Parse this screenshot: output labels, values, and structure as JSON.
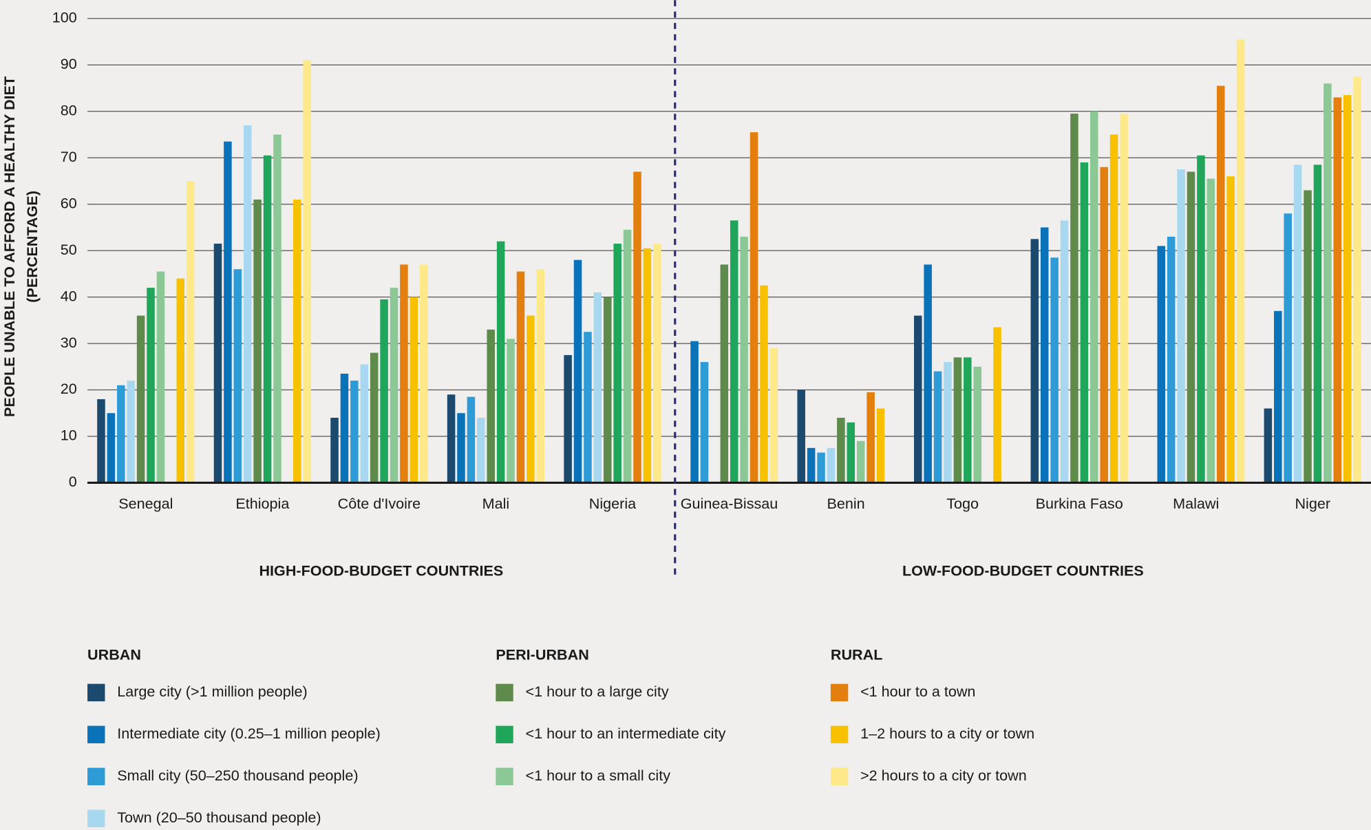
{
  "chart_data": {
    "type": "bar",
    "ylabel": [
      "PEOPLE UNABLE TO AFFORD A HEALTHY DIET",
      "(PERCENTAGE)"
    ],
    "categories": [
      "Senegal",
      "Ethiopia",
      "Côte d'Ivoire",
      "Mali",
      "Nigeria",
      "Guinea-Bissau",
      "Benin",
      "Togo",
      "Burkina Faso",
      "Malawi",
      "Niger"
    ],
    "category_groups": [
      "HIGH-FOOD-BUDGET COUNTRIES",
      "LOW-FOOD-BUDGET COUNTRIES"
    ],
    "legend_groups": [
      "URBAN",
      "PERI-URBAN",
      "RURAL"
    ],
    "ylim": [
      0,
      100
    ],
    "yticks": [
      0,
      10,
      20,
      30,
      40,
      50,
      60,
      70,
      80,
      90,
      100
    ],
    "grid": true,
    "series": [
      {
        "name": "Large city (>1 million people)",
        "color": "#1b4a6e",
        "values": [
          18,
          51.5,
          14,
          19,
          27.5,
          null,
          20,
          36,
          52.5,
          null,
          16
        ]
      },
      {
        "name": "Intermediate city (0.25–1 million people)",
        "color": "#0a72b9",
        "values": [
          15,
          73.5,
          23.5,
          15,
          48,
          30.5,
          7.5,
          47,
          55,
          51,
          37
        ]
      },
      {
        "name": "Small city (50–250 thousand people)",
        "color": "#2e9bd6",
        "values": [
          21,
          46,
          22,
          18.5,
          32.5,
          26,
          6.5,
          24,
          48.5,
          53,
          58
        ]
      },
      {
        "name": "Town (20–50 thousand people)",
        "color": "#a8d8f0",
        "values": [
          22,
          77,
          25.5,
          14,
          41,
          null,
          7.5,
          26,
          56.5,
          67.5,
          68.5
        ]
      },
      {
        "name": "<1 hour to a large city",
        "color": "#5e8a4b",
        "values": [
          36,
          61,
          28,
          33,
          40,
          47,
          14,
          27,
          79.5,
          67,
          63
        ]
      },
      {
        "name": "<1 hour to an intermediate city",
        "color": "#1fa65a",
        "values": [
          42,
          70.5,
          39.5,
          52,
          51.5,
          56.5,
          13,
          27,
          69,
          70.5,
          68.5
        ]
      },
      {
        "name": "<1 hour to a small city",
        "color": "#8cc896",
        "values": [
          45.5,
          75,
          42,
          31,
          54.5,
          53,
          9,
          25,
          80,
          65.5,
          86
        ]
      },
      {
        "name": "<1 hour to a town",
        "color": "#e37f0f",
        "values": [
          null,
          null,
          47,
          45.5,
          67,
          75.5,
          19.5,
          null,
          68,
          85.5,
          83
        ]
      },
      {
        "name": "1–2 hours to a city or town",
        "color": "#f7c100",
        "values": [
          44,
          61,
          40,
          36,
          50.5,
          42.5,
          16,
          33.5,
          75,
          66,
          83.5
        ]
      },
      {
        "name": ">2 hours to a city or town",
        "color": "#fde98a",
        "values": [
          65,
          91,
          47,
          46,
          51.5,
          29,
          null,
          null,
          79.5,
          95.5,
          87.5
        ]
      }
    ]
  }
}
